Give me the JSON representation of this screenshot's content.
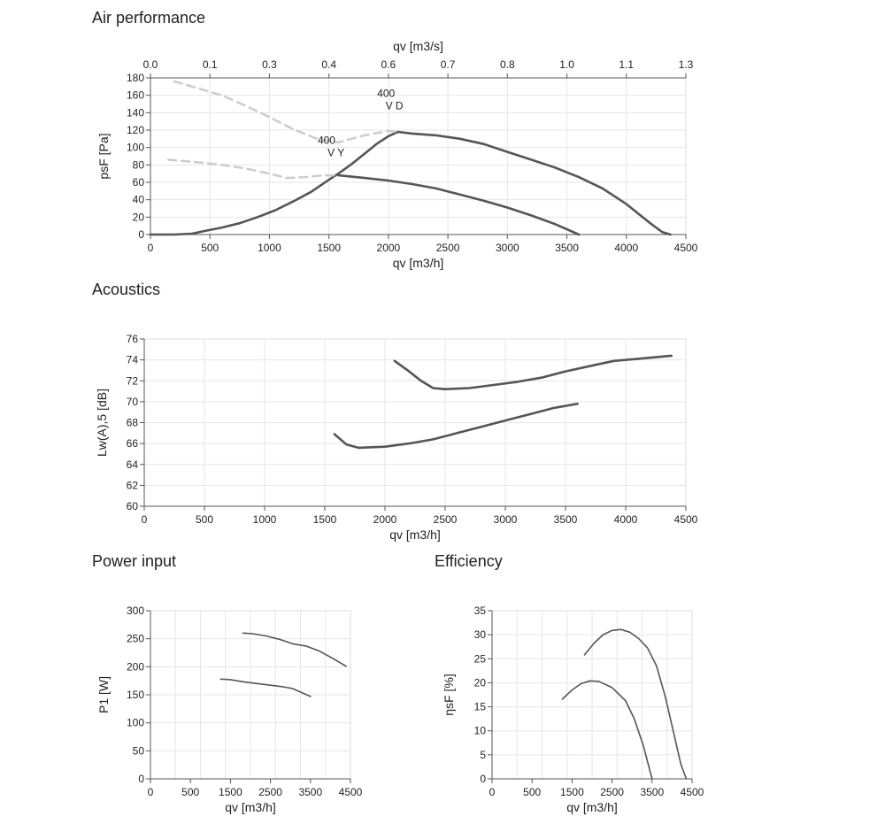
{
  "sections": {
    "air": "Air performance",
    "acoustics": "Acoustics",
    "power": "Power input",
    "efficiency": "Efficiency"
  },
  "colors": {
    "curve": "#555555",
    "curve_light": "#cccccc",
    "grid": "#e6e6e6",
    "axis": "#555555"
  },
  "chart_data": [
    {
      "id": "air",
      "type": "line",
      "xlabel": "qv [m3/h]",
      "ylabel": "psF [Pa]",
      "x2label": "qv [m3/s]",
      "xlim": [
        0,
        4500
      ],
      "ylim": [
        0,
        180
      ],
      "xticks": [
        0,
        500,
        1000,
        1500,
        2000,
        2500,
        3000,
        3500,
        4000,
        4500
      ],
      "yticks": [
        0,
        20,
        40,
        60,
        80,
        100,
        120,
        140,
        160,
        180
      ],
      "x2ticks": [
        "0.0",
        "0.1",
        "0.3",
        "0.4",
        "0.6",
        "0.7",
        "0.8",
        "1.0",
        "1.1",
        "1.3"
      ],
      "grid": true,
      "annotations": [
        {
          "text": "400",
          "x": 1980,
          "y": 158
        },
        {
          "text": "V D",
          "x": 2050,
          "y": 144
        },
        {
          "text": "400",
          "x": 1480,
          "y": 104
        },
        {
          "text": "V Y",
          "x": 1560,
          "y": 90
        }
      ],
      "series": [
        {
          "style": "solid",
          "points": [
            [
              0,
              0
            ],
            [
              200,
              0
            ],
            [
              350,
              1
            ],
            [
              450,
              4
            ],
            [
              600,
              8
            ],
            [
              750,
              13
            ],
            [
              900,
              20
            ],
            [
              1050,
              28
            ],
            [
              1200,
              38
            ],
            [
              1350,
              49
            ],
            [
              1500,
              63
            ],
            [
              1600,
              72
            ],
            [
              1700,
              82
            ],
            [
              1800,
              93
            ],
            [
              1900,
              104
            ],
            [
              2000,
              113
            ],
            [
              2080,
              118
            ],
            [
              2200,
              116
            ],
            [
              2400,
              114
            ],
            [
              2600,
              110
            ],
            [
              2800,
              104
            ],
            [
              3000,
              95
            ],
            [
              3200,
              86
            ],
            [
              3400,
              77
            ],
            [
              3600,
              66
            ],
            [
              3800,
              53
            ],
            [
              4000,
              35
            ],
            [
              4100,
              24
            ],
            [
              4200,
              13
            ],
            [
              4300,
              3
            ],
            [
              4370,
              0
            ]
          ]
        },
        {
          "style": "solid",
          "points": [
            [
              1580,
              68
            ],
            [
              1800,
              65
            ],
            [
              2000,
              62
            ],
            [
              2200,
              58
            ],
            [
              2400,
              53
            ],
            [
              2600,
              46
            ],
            [
              2800,
              39
            ],
            [
              3000,
              31
            ],
            [
              3200,
              22
            ],
            [
              3400,
              12
            ],
            [
              3500,
              6
            ],
            [
              3600,
              0
            ]
          ]
        },
        {
          "style": "dashed-light",
          "points": [
            [
              200,
              176
            ],
            [
              400,
              168
            ],
            [
              600,
              160
            ],
            [
              800,
              148
            ],
            [
              1000,
              135
            ],
            [
              1200,
              121
            ],
            [
              1400,
              110
            ],
            [
              1580,
              106
            ],
            [
              1800,
              114
            ],
            [
              2000,
              119
            ],
            [
              2080,
              118
            ]
          ]
        },
        {
          "style": "dashed-light",
          "points": [
            [
              150,
              86
            ],
            [
              400,
              83
            ],
            [
              600,
              80
            ],
            [
              800,
              76
            ],
            [
              1000,
              70
            ],
            [
              1150,
              65
            ],
            [
              1300,
              66
            ],
            [
              1450,
              68
            ],
            [
              1580,
              68
            ]
          ]
        }
      ]
    },
    {
      "id": "acoustics",
      "type": "line",
      "xlabel": "qv [m3/h]",
      "ylabel": "Lw(A),5 [dB]",
      "xlim": [
        0,
        4500
      ],
      "ylim": [
        60,
        76
      ],
      "xticks": [
        0,
        500,
        1000,
        1500,
        2000,
        2500,
        3000,
        3500,
        4000,
        4500
      ],
      "yticks": [
        60,
        62,
        64,
        66,
        68,
        70,
        72,
        74,
        76
      ],
      "grid": true,
      "series": [
        {
          "style": "solid",
          "points": [
            [
              2080,
              73.9
            ],
            [
              2200,
              72.9
            ],
            [
              2300,
              72.0
            ],
            [
              2400,
              71.3
            ],
            [
              2500,
              71.2
            ],
            [
              2700,
              71.3
            ],
            [
              2900,
              71.6
            ],
            [
              3100,
              71.9
            ],
            [
              3300,
              72.3
            ],
            [
              3500,
              72.9
            ],
            [
              3700,
              73.4
            ],
            [
              3900,
              73.9
            ],
            [
              4100,
              74.1
            ],
            [
              4380,
              74.4
            ]
          ]
        },
        {
          "style": "solid",
          "points": [
            [
              1580,
              66.9
            ],
            [
              1680,
              65.9
            ],
            [
              1780,
              65.6
            ],
            [
              2000,
              65.7
            ],
            [
              2200,
              66.0
            ],
            [
              2400,
              66.4
            ],
            [
              2600,
              67.0
            ],
            [
              2800,
              67.6
            ],
            [
              3000,
              68.2
            ],
            [
              3200,
              68.8
            ],
            [
              3400,
              69.4
            ],
            [
              3600,
              69.8
            ]
          ]
        }
      ]
    },
    {
      "id": "power",
      "type": "line",
      "xlabel": "qv [m3/h]",
      "ylabel": "P1 [W]",
      "xlim": [
        0,
        4500
      ],
      "ylim": [
        0,
        300
      ],
      "xticks": [
        0,
        500,
        1500,
        2500,
        3500,
        4500
      ],
      "yticks": [
        0,
        50,
        100,
        150,
        200,
        250,
        300
      ],
      "grid": true,
      "series": [
        {
          "style": "solid",
          "points": [
            [
              2080,
              260
            ],
            [
              2300,
              259
            ],
            [
              2600,
              255
            ],
            [
              2900,
              249
            ],
            [
              3200,
              241
            ],
            [
              3500,
              237
            ],
            [
              3800,
              228
            ],
            [
              4100,
              215
            ],
            [
              4400,
              201
            ]
          ]
        },
        {
          "style": "solid",
          "points": [
            [
              1580,
              178
            ],
            [
              1800,
              177
            ],
            [
              2100,
              173
            ],
            [
              2400,
              170
            ],
            [
              2700,
              167
            ],
            [
              3000,
              164
            ],
            [
              3200,
              161
            ],
            [
              3400,
              154
            ],
            [
              3600,
              147
            ]
          ]
        }
      ]
    },
    {
      "id": "efficiency",
      "type": "line",
      "xlabel": "qv [m3/h]",
      "ylabel": "ηsF [%]",
      "xlim": [
        0,
        4500
      ],
      "ylim": [
        0,
        35
      ],
      "xticks": [
        0,
        500,
        1500,
        2500,
        3500,
        4500
      ],
      "yticks": [
        0,
        5,
        10,
        15,
        20,
        25,
        30,
        35
      ],
      "grid": true,
      "series": [
        {
          "style": "solid",
          "points": [
            [
              2080,
              25.8
            ],
            [
              2300,
              28.3
            ],
            [
              2500,
              30.0
            ],
            [
              2700,
              30.9
            ],
            [
              2900,
              31.1
            ],
            [
              3100,
              30.5
            ],
            [
              3300,
              29.2
            ],
            [
              3500,
              27.2
            ],
            [
              3700,
              23.5
            ],
            [
              3900,
              17.0
            ],
            [
              4100,
              9.0
            ],
            [
              4250,
              3.0
            ],
            [
              4370,
              0
            ]
          ]
        },
        {
          "style": "solid",
          "points": [
            [
              1580,
              16.6
            ],
            [
              1800,
              18.5
            ],
            [
              2000,
              19.8
            ],
            [
              2200,
              20.4
            ],
            [
              2400,
              20.3
            ],
            [
              2700,
              19.0
            ],
            [
              3000,
              16.3
            ],
            [
              3200,
              12.5
            ],
            [
              3400,
              7.0
            ],
            [
              3500,
              3.5
            ],
            [
              3600,
              0
            ]
          ]
        }
      ]
    }
  ]
}
